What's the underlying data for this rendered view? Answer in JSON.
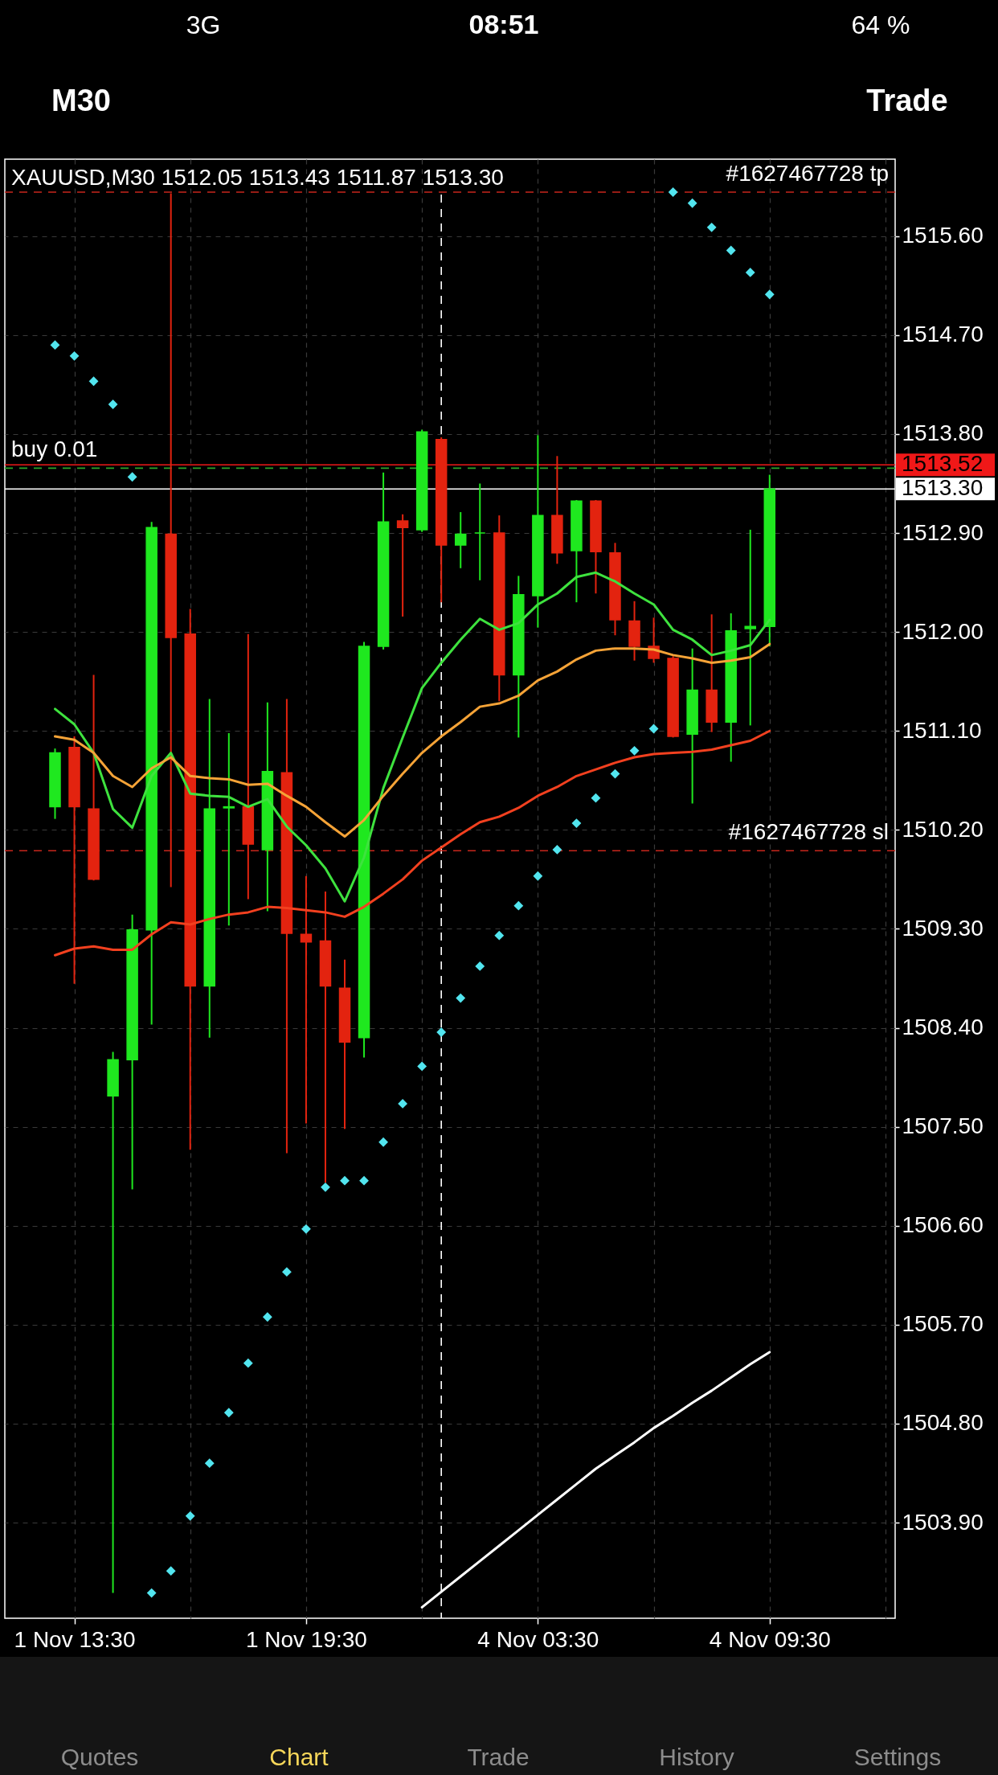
{
  "chart_data": {
    "type": "candlestick",
    "title": "XAUUSD,M30 1512.05 1513.43 1511.87 1513.30",
    "categories": [
      null,
      "1 Nov 13:30",
      null,
      null,
      null,
      null,
      null,
      null,
      null,
      null,
      null,
      null,
      null,
      "1 Nov 19:30",
      null,
      null,
      null,
      null,
      null,
      null,
      null,
      null,
      null,
      null,
      null,
      "4 Nov 03:30",
      null,
      null,
      null,
      null,
      null,
      null,
      null,
      null,
      null,
      null,
      null,
      "4 Nov 09:30"
    ],
    "ohlc": [
      [
        1510.41,
        1510.94,
        1510.3,
        1510.9
      ],
      [
        1510.95,
        1511.05,
        1508.8,
        1510.41
      ],
      [
        1510.39,
        1511.61,
        1509.74,
        1509.75
      ],
      [
        1507.78,
        1508.18,
        1503.26,
        1508.11
      ],
      [
        1508.11,
        1509.43,
        1506.93,
        1509.29
      ],
      [
        1509.29,
        1513.0,
        1508.43,
        1512.95
      ],
      [
        1512.89,
        1515.99,
        1509.68,
        1511.95
      ],
      [
        1511.98,
        1512.21,
        1507.29,
        1508.78
      ],
      [
        1508.78,
        1511.39,
        1508.31,
        1510.39
      ],
      [
        1510.4,
        1511.08,
        1509.33,
        1510.41
      ],
      [
        1510.41,
        1511.98,
        1509.57,
        1510.07
      ],
      [
        1510.02,
        1511.36,
        1509.46,
        1510.73
      ],
      [
        1510.72,
        1511.39,
        1507.26,
        1509.26
      ],
      [
        1509.25,
        1509.78,
        1507.53,
        1509.18
      ],
      [
        1509.19,
        1509.64,
        1506.99,
        1508.78
      ],
      [
        1508.76,
        1509.02,
        1507.48,
        1508.27
      ],
      [
        1508.31,
        1511.91,
        1508.13,
        1511.87
      ],
      [
        1511.87,
        1513.45,
        1511.84,
        1513.0
      ],
      [
        1513.01,
        1513.07,
        1512.14,
        1512.95
      ],
      [
        1512.93,
        1513.84,
        1512.91,
        1513.82
      ],
      [
        1513.75,
        1513.77,
        1512.27,
        1512.79
      ],
      [
        1512.79,
        1513.09,
        1512.58,
        1512.89
      ],
      [
        1512.9,
        1513.35,
        1512.47,
        1512.9
      ],
      [
        1512.9,
        1513.06,
        1511.37,
        1511.61
      ],
      [
        1511.61,
        1512.51,
        1511.04,
        1512.34
      ],
      [
        1512.33,
        1513.79,
        1512.04,
        1513.06
      ],
      [
        1513.06,
        1513.6,
        1512.62,
        1512.72
      ],
      [
        1512.74,
        1513.2,
        1512.27,
        1513.19
      ],
      [
        1513.19,
        1513.2,
        1512.35,
        1512.73
      ],
      [
        1512.72,
        1512.81,
        1511.97,
        1512.11
      ],
      [
        1512.1,
        1512.28,
        1511.74,
        1511.87
      ],
      [
        1511.87,
        1512.13,
        1511.72,
        1511.76
      ],
      [
        1511.76,
        1511.78,
        1511.04,
        1511.05
      ],
      [
        1511.07,
        1511.85,
        1510.44,
        1511.47
      ],
      [
        1511.47,
        1512.16,
        1511.09,
        1511.18
      ],
      [
        1511.18,
        1512.17,
        1510.82,
        1512.01
      ],
      [
        1512.03,
        1512.93,
        1511.15,
        1512.05
      ],
      [
        1512.05,
        1513.43,
        1511.87,
        1513.3
      ]
    ],
    "colors": [
      "#1fe81f",
      "#e3230f",
      "#e3230f",
      "#1fe81f",
      "#1fe81f",
      "#1fe81f",
      "#e3230f",
      "#e3230f",
      "#1fe81f",
      "#1fe81f",
      "#e3230f",
      "#1fe81f",
      "#e3230f",
      "#e3230f",
      "#e3230f",
      "#e3230f",
      "#1fe81f",
      "#1fe81f",
      "#e3230f",
      "#1fe81f",
      "#e3230f",
      "#1fe81f",
      "#1fe81f",
      "#e3230f",
      "#1fe81f",
      "#1fe81f",
      "#e3230f",
      "#1fe81f",
      "#e3230f",
      "#e3230f",
      "#e3230f",
      "#e3230f",
      "#e3230f",
      "#1fe81f",
      "#e3230f",
      "#1fe81f",
      "#1fe81f",
      "#1fe81f"
    ],
    "series": [
      {
        "type": "line",
        "color": "#3ee23e",
        "values": [
          1511.3,
          1511.16,
          1510.9,
          1510.39,
          1510.22,
          1510.69,
          1510.9,
          1510.53,
          1510.51,
          1510.5,
          1510.41,
          1510.48,
          1510.23,
          1510.06,
          1509.85,
          1509.55,
          1509.95,
          1510.58,
          1511.04,
          1511.49,
          1511.72,
          1511.93,
          1512.12,
          1512.02,
          1512.08,
          1512.25,
          1512.35,
          1512.5,
          1512.54,
          1512.46,
          1512.35,
          1512.25,
          1512.02,
          1511.93,
          1511.79,
          1511.83,
          1511.88,
          1512.11
        ]
      },
      {
        "type": "line",
        "color": "#f5a337",
        "values": [
          1511.05,
          1511.02,
          1510.9,
          1510.69,
          1510.59,
          1510.76,
          1510.86,
          1510.69,
          1510.67,
          1510.66,
          1510.61,
          1510.62,
          1510.51,
          1510.41,
          1510.27,
          1510.14,
          1510.29,
          1510.51,
          1510.71,
          1510.9,
          1511.05,
          1511.18,
          1511.32,
          1511.35,
          1511.42,
          1511.56,
          1511.64,
          1511.75,
          1511.83,
          1511.85,
          1511.85,
          1511.84,
          1511.79,
          1511.76,
          1511.72,
          1511.74,
          1511.77,
          1511.89
        ]
      },
      {
        "type": "line",
        "color": "#f2401f",
        "values": [
          1509.06,
          1509.12,
          1509.14,
          1509.11,
          1509.11,
          1509.25,
          1509.36,
          1509.34,
          1509.39,
          1509.43,
          1509.45,
          1509.5,
          1509.49,
          1509.47,
          1509.45,
          1509.41,
          1509.5,
          1509.62,
          1509.75,
          1509.92,
          1510.04,
          1510.16,
          1510.27,
          1510.32,
          1510.4,
          1510.51,
          1510.59,
          1510.69,
          1510.75,
          1510.81,
          1510.86,
          1510.89,
          1510.9,
          1510.91,
          1510.93,
          1510.97,
          1511.01,
          1511.1
        ]
      },
      {
        "type": "scatter",
        "marker": "diamond",
        "color": "#52e5ef",
        "values": [
          1514.61,
          1514.51,
          1514.28,
          1514.07,
          1513.41,
          1503.26,
          1503.46,
          1503.96,
          1504.44,
          1504.9,
          1505.35,
          1505.77,
          1506.18,
          1506.57,
          1506.95,
          1507.01,
          1507.01,
          1507.36,
          1507.71,
          1508.05,
          1508.36,
          1508.67,
          1508.96,
          1509.24,
          1509.51,
          1509.78,
          1510.02,
          1510.26,
          1510.49,
          1510.71,
          1510.92,
          1511.12,
          1516.0,
          1515.9,
          1515.68,
          1515.47,
          1515.27,
          1515.07
        ]
      },
      {
        "type": "line",
        "color": "#ffffff",
        "values": [
          null,
          null,
          null,
          null,
          null,
          null,
          null,
          null,
          null,
          null,
          null,
          null,
          null,
          null,
          null,
          null,
          null,
          null,
          null,
          1503.13,
          1503.27,
          1503.41,
          1503.55,
          1503.69,
          1503.83,
          1503.97,
          1504.11,
          1504.25,
          1504.39,
          1504.51,
          1504.63,
          1504.76,
          1504.87,
          1504.99,
          1505.1,
          1505.22,
          1505.34,
          1505.45
        ]
      }
    ],
    "ylim": [
      1503.03,
      1516.3
    ],
    "yticks": [
      {
        "value": 1503.9,
        "label": "1503.90"
      },
      {
        "value": 1504.8,
        "label": "1504.80"
      },
      {
        "value": 1505.7,
        "label": "1505.70"
      },
      {
        "value": 1506.6,
        "label": "1506.60"
      },
      {
        "value": 1507.5,
        "label": "1507.50"
      },
      {
        "value": 1508.4,
        "label": "1508.40"
      },
      {
        "value": 1509.3,
        "label": "1509.30"
      },
      {
        "value": 1510.2,
        "label": "1510.20"
      },
      {
        "value": 1511.1,
        "label": "1511.10"
      },
      {
        "value": 1512.0,
        "label": "1512.00"
      },
      {
        "value": 1512.9,
        "label": "1512.90"
      },
      {
        "value": 1513.8,
        "label": "1513.80"
      },
      {
        "value": 1514.7,
        "label": "1514.70"
      },
      {
        "value": 1515.6,
        "label": "1515.60"
      }
    ],
    "grid": true,
    "ref_lines": [
      {
        "axis": "y",
        "value": 1516.0,
        "label": "#1627467728 tp",
        "color": "#c8261c",
        "line_style": "dashed"
      },
      {
        "axis": "y",
        "value": 1513.52,
        "label": "1513.52",
        "color": "#f01818",
        "line_style": "solid"
      },
      {
        "axis": "y",
        "value": 1513.49,
        "label": "buy 0.01",
        "color": "#2aa52a",
        "line_style": "dashed"
      },
      {
        "axis": "y",
        "value": 1513.3,
        "label": "1513.30",
        "color": "#ffffff",
        "line_style": "solid"
      },
      {
        "axis": "y",
        "value": 1510.01,
        "label": "#1627467728 sl",
        "color": "#c8261c",
        "line_style": "dashed"
      }
    ],
    "annotations": [
      "08:51",
      "3G",
      "64 %",
      "M30",
      "Trade",
      "Quotes",
      "Chart",
      "Trade",
      "History",
      "Settings"
    ]
  }
}
